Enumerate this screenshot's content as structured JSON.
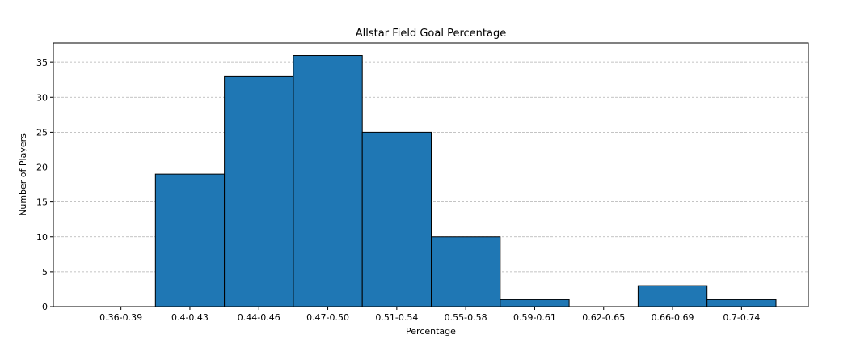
{
  "chart_data": {
    "type": "bar",
    "title": "Allstar Field Goal Percentage",
    "xlabel": "Percentage",
    "ylabel": "Number of Players",
    "categories": [
      "0.36-0.39",
      "0.4-0.43",
      "0.44-0.46",
      "0.47-0.50",
      "0.51-0.54",
      "0.55-0.58",
      "0.59-0.61",
      "0.62-0.65",
      "0.66-0.69",
      "0.7-0.74"
    ],
    "values": [
      0,
      19,
      33,
      36,
      25,
      10,
      1,
      0,
      3,
      1
    ],
    "ylim": [
      0,
      37.8
    ],
    "yticks": [
      "0",
      "5",
      "10",
      "15",
      "20",
      "25",
      "30",
      "35"
    ],
    "grid": "y-dashed",
    "bar_color": "#1f77b4",
    "edge_color": "#000000",
    "grid_color": "#b0b0b0"
  }
}
